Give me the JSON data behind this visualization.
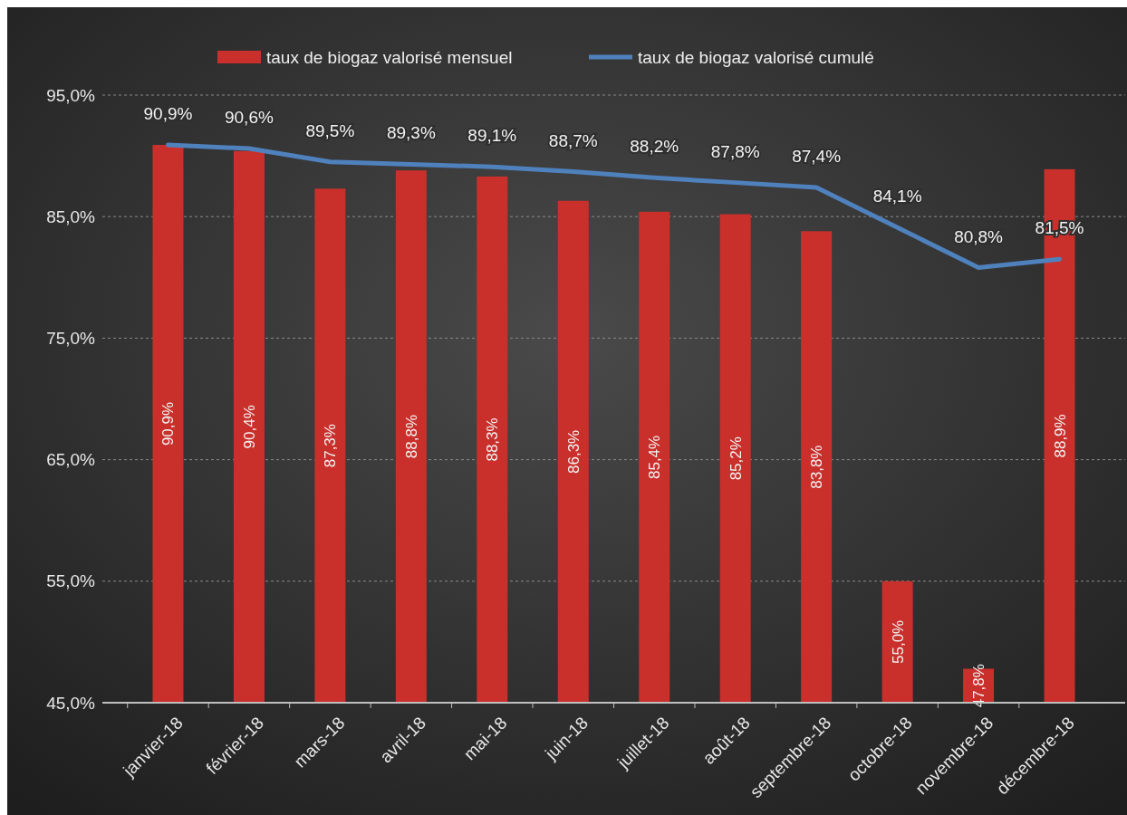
{
  "chart_data": {
    "type": "bar",
    "categories": [
      "janvier-18",
      "février-18",
      "mars-18",
      "avril-18",
      "mai-18",
      "juin-18",
      "juillet-18",
      "août-18",
      "septembre-18",
      "octobre-18",
      "novembre-18",
      "décembre-18"
    ],
    "series": [
      {
        "name": "taux de biogaz valorisé mensuel",
        "color": "#c9302c",
        "values": [
          90.9,
          90.4,
          87.3,
          88.8,
          88.3,
          86.3,
          85.4,
          85.2,
          83.8,
          55.0,
          47.8,
          88.9
        ],
        "value_labels": [
          "90,9%",
          "90,4%",
          "87,3%",
          "88,8%",
          "88,3%",
          "86,3%",
          "85,4%",
          "85,2%",
          "83,8%",
          "55,0%",
          "47,8%",
          "88,9%"
        ]
      },
      {
        "name": "taux de biogaz valorisé cumulé",
        "type": "line",
        "color": "#4f81bd",
        "values": [
          90.9,
          90.6,
          89.5,
          89.3,
          89.1,
          88.7,
          88.2,
          87.8,
          87.4,
          84.1,
          80.8,
          81.5
        ],
        "value_labels": [
          "90,9%",
          "90,6%",
          "89,5%",
          "89,3%",
          "89,1%",
          "88,7%",
          "88,2%",
          "87,8%",
          "87,4%",
          "84,1%",
          "80,8%",
          "81,5%"
        ]
      }
    ],
    "ylim": [
      45,
      95
    ],
    "yticks": [
      {
        "value": 45,
        "label": "45,0%"
      },
      {
        "value": 55,
        "label": "55,0%"
      },
      {
        "value": 65,
        "label": "65,0%"
      },
      {
        "value": 75,
        "label": "75,0%"
      },
      {
        "value": 85,
        "label": "85,0%"
      },
      {
        "value": 95,
        "label": "95,0%"
      }
    ],
    "grid": "y",
    "legend": "top",
    "marker": "none",
    "line_style": "solid"
  }
}
